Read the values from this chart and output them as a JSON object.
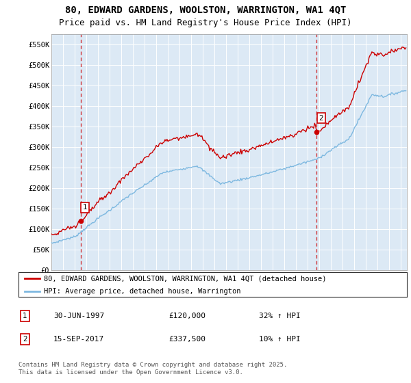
{
  "title": "80, EDWARD GARDENS, WOOLSTON, WARRINGTON, WA1 4QT",
  "subtitle": "Price paid vs. HM Land Registry's House Price Index (HPI)",
  "title_fontsize": 10,
  "subtitle_fontsize": 9,
  "background_color": "#ffffff",
  "plot_bg_color": "#dce9f5",
  "grid_color": "#ffffff",
  "red_color": "#cc0000",
  "blue_color": "#7db8e0",
  "ylim": [
    0,
    575000
  ],
  "yticks": [
    0,
    50000,
    100000,
    150000,
    200000,
    250000,
    300000,
    350000,
    400000,
    450000,
    500000,
    550000
  ],
  "ytick_labels": [
    "£0",
    "£50K",
    "£100K",
    "£150K",
    "£200K",
    "£250K",
    "£300K",
    "£350K",
    "£400K",
    "£450K",
    "£500K",
    "£550K"
  ],
  "sale1_x_year": 1997.5,
  "sale1_y": 120000,
  "sale1_label": "1",
  "sale2_x_year": 2017.75,
  "sale2_y": 337500,
  "sale2_label": "2",
  "legend_line1": "80, EDWARD GARDENS, WOOLSTON, WARRINGTON, WA1 4QT (detached house)",
  "legend_line2": "HPI: Average price, detached house, Warrington",
  "note1_label": "1",
  "note1_date": "30-JUN-1997",
  "note1_price": "£120,000",
  "note1_hpi": "32% ↑ HPI",
  "note2_label": "2",
  "note2_date": "15-SEP-2017",
  "note2_price": "£337,500",
  "note2_hpi": "10% ↑ HPI",
  "footer": "Contains HM Land Registry data © Crown copyright and database right 2025.\nThis data is licensed under the Open Government Licence v3.0.",
  "xmin": 1995.0,
  "xmax": 2025.5
}
